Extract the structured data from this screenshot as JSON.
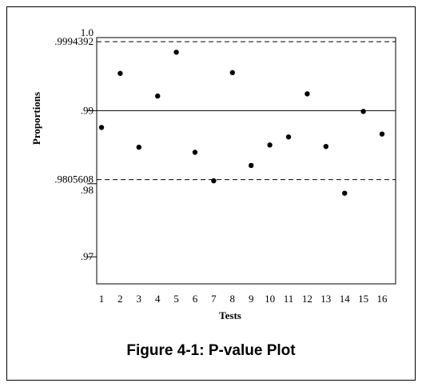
{
  "caption": "Figure 4-1: P-value Plot",
  "chart_data": {
    "type": "scatter",
    "title": "",
    "xlabel": "Tests",
    "ylabel": "Proportions",
    "x": [
      1,
      2,
      3,
      4,
      5,
      6,
      7,
      8,
      9,
      10,
      11,
      12,
      13,
      14,
      15,
      16
    ],
    "x_tick_labels": [
      "1",
      "2",
      "3",
      "4",
      "5",
      "6",
      "7",
      "8",
      "9",
      "10",
      "11",
      "12",
      "13",
      "14",
      "15",
      "16"
    ],
    "values": [
      0.9877,
      0.9951,
      0.985,
      0.992,
      0.998,
      0.9843,
      0.9804,
      0.9952,
      0.9825,
      0.9853,
      0.9864,
      0.9923,
      0.9851,
      0.9787,
      0.9899,
      0.9868
    ],
    "ylim": [
      0.9663,
      1.0
    ],
    "y_tick_labels": [
      {
        "value": 0.97,
        "label": ".97"
      },
      {
        "value": 0.98,
        "label": ".98"
      },
      {
        "value": 0.99,
        "label": ".99"
      },
      {
        "value": 1.0,
        "label": "1.0"
      }
    ],
    "reference_lines": [
      {
        "value": 0.9994392,
        "label": ".9994392",
        "style": "dashed"
      },
      {
        "value": 0.99,
        "label": "",
        "style": "solid"
      },
      {
        "value": 0.9805608,
        "label": ".9805608",
        "style": "dashed"
      }
    ],
    "grid": false,
    "legend": "none",
    "marker_color": "#000000"
  }
}
